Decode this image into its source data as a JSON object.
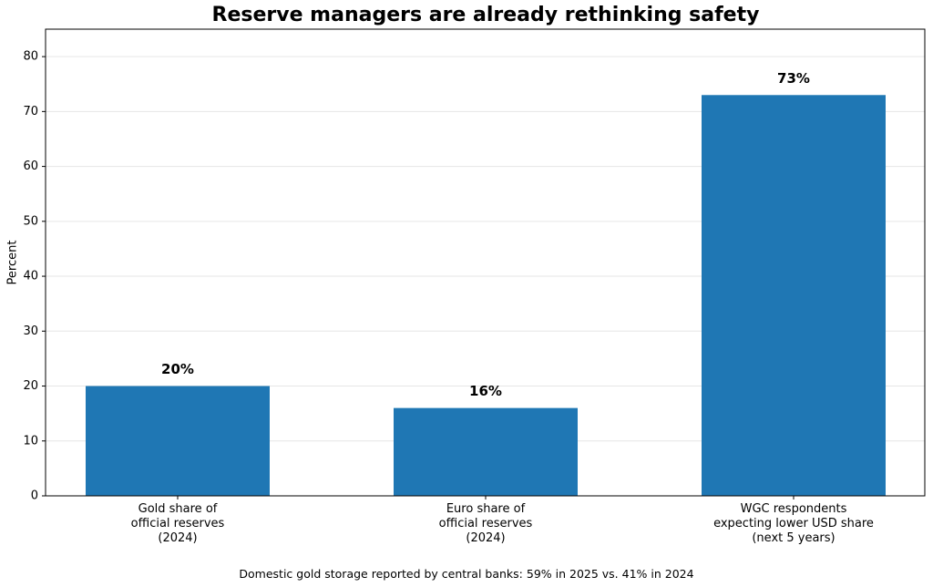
{
  "chart_data": {
    "type": "bar",
    "title": "Reserve managers are already rethinking safety",
    "categories": [
      "Gold share of\nofficial reserves\n(2024)",
      "Euro share of\nofficial reserves\n(2024)",
      "WGC respondents\nexpecting lower USD share\n(next 5 years)"
    ],
    "values": [
      20,
      16,
      73
    ],
    "value_labels": [
      "20%",
      "16%",
      "73%"
    ],
    "color": "#1f77b4",
    "y_label": "Percent",
    "ylim": [
      0,
      85
    ],
    "yticks": [
      0,
      10,
      20,
      30,
      40,
      50,
      60,
      70,
      80
    ],
    "grid": true,
    "annotation": "Domestic gold storage reported by central banks: 59% in 2025 vs. 41% in 2024"
  }
}
